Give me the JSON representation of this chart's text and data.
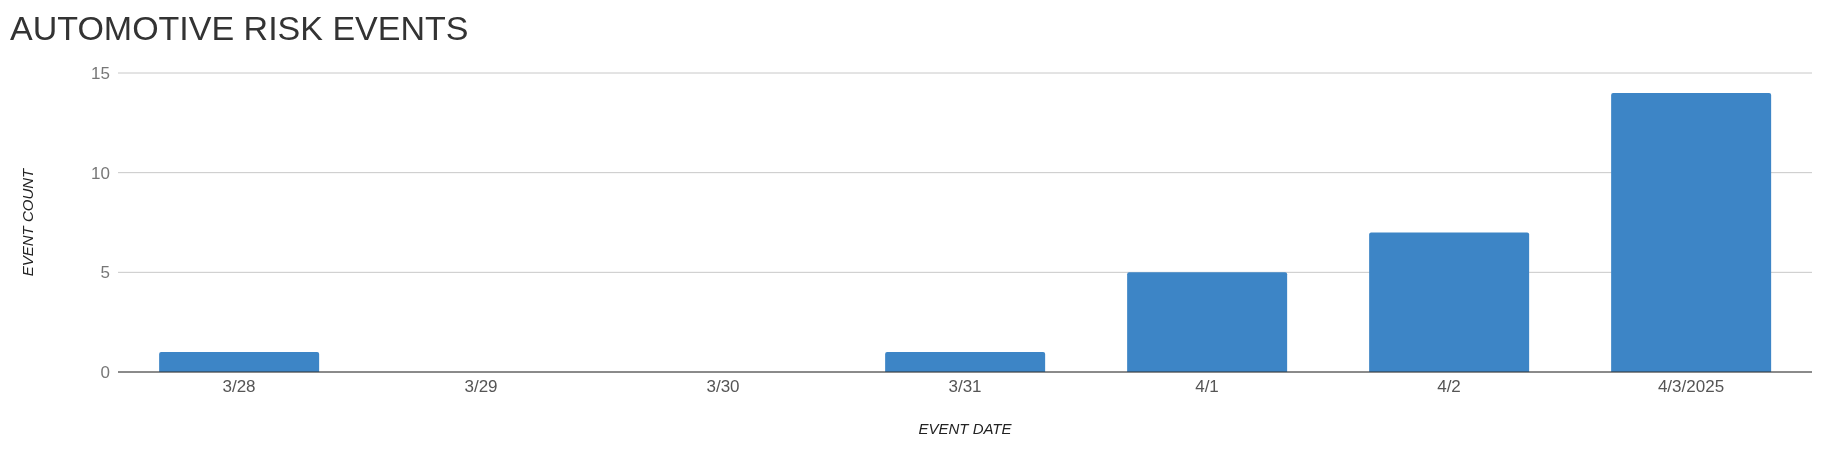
{
  "chart_data": {
    "type": "bar",
    "title": "AUTOMOTIVE RISK EVENTS",
    "xlabel": "EVENT DATE",
    "ylabel": "EVENT COUNT",
    "categories": [
      "3/28",
      "3/29",
      "3/30",
      "3/31",
      "4/1",
      "4/2",
      "4/3/2025"
    ],
    "values": [
      1,
      0,
      0,
      1,
      5,
      7,
      14
    ],
    "color": "#3d85c6",
    "ylim": [
      0,
      15
    ],
    "yticks": [
      0,
      5,
      10,
      15
    ],
    "grid": "y"
  }
}
